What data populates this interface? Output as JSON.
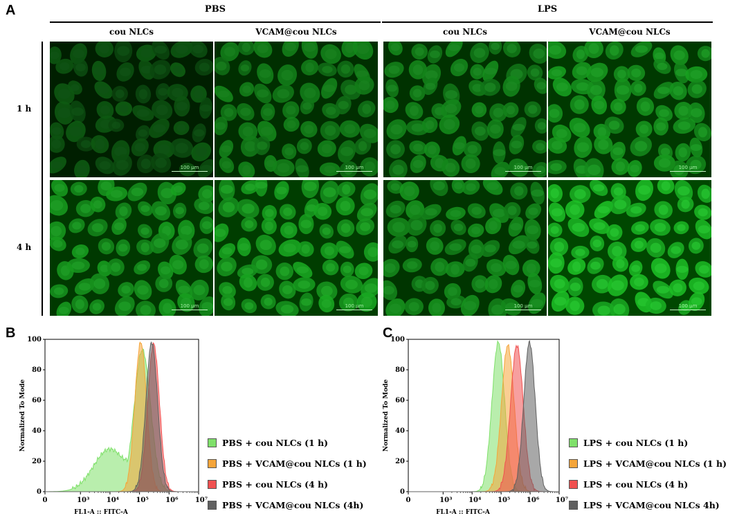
{
  "panel_a": {
    "letter": "A",
    "groups": [
      {
        "title": "PBS",
        "columns": [
          "cou NLCs",
          "VCAM@cou NLCs"
        ]
      },
      {
        "title": "LPS",
        "columns": [
          "cou NLCs",
          "VCAM@cou NLCs"
        ]
      }
    ],
    "rows": [
      "1 h",
      "4 h"
    ],
    "scale_bar": "100 μm",
    "brightness": [
      [
        0.18,
        0.45,
        0.5,
        0.62
      ],
      [
        0.62,
        0.68,
        0.55,
        0.85
      ]
    ]
  },
  "panel_b": {
    "letter": "B"
  },
  "panel_c": {
    "letter": "C"
  },
  "chart_data": [
    {
      "type": "area",
      "title": "",
      "xlabel": "FL1-A :: FITC-A",
      "ylabel": "Normalized To Mode",
      "x_scale": "log",
      "ylim": [
        0,
        100
      ],
      "x_ticks": [
        "0",
        "10³",
        "10⁴",
        "10⁵",
        "10⁶",
        "10⁷"
      ],
      "y_ticks": [
        "0",
        "20",
        "40",
        "60",
        "80",
        "100"
      ],
      "legend_position": "right",
      "series": [
        {
          "name": "PBS + cou NLCs (1 h)",
          "color": "#7fe06a",
          "peak": 125000,
          "peak_height": 93,
          "spread": 0.28,
          "shoulder": true
        },
        {
          "name": "PBS + VCAM@cou NLCs (1 h)",
          "color": "#f5a53a",
          "peak": 110000,
          "peak_height": 98,
          "spread": 0.2
        },
        {
          "name": "PBS + cou NLCs (4 h)",
          "color": "#f05050",
          "peak": 300000,
          "peak_height": 97,
          "spread": 0.2
        },
        {
          "name": "PBS + VCAM@cou NLCs (4h)",
          "color": "#606060",
          "peak": 260000,
          "peak_height": 98,
          "spread": 0.2
        }
      ]
    },
    {
      "type": "area",
      "title": "",
      "xlabel": "FL1-A :: FITC-A",
      "ylabel": "Normalized To Mode",
      "x_scale": "log",
      "ylim": [
        0,
        100
      ],
      "x_ticks": [
        "0",
        "10³",
        "10⁴",
        "10⁵",
        "10⁶",
        "10⁷"
      ],
      "y_ticks": [
        "0",
        "20",
        "40",
        "60",
        "80",
        "100"
      ],
      "legend_position": "right",
      "series": [
        {
          "name": "LPS + cou NLCs (1 h)",
          "color": "#7fe06a",
          "peak": 80000,
          "peak_height": 98,
          "spread": 0.22
        },
        {
          "name": "LPS + VCAM@cou NLCs (1 h)",
          "color": "#f5a53a",
          "peak": 170000,
          "peak_height": 96,
          "spread": 0.22
        },
        {
          "name": "LPS + cou NLCs (4 h)",
          "color": "#f05050",
          "peak": 350000,
          "peak_height": 96,
          "spread": 0.22
        },
        {
          "name": "LPS + VCAM@cou NLCs 4h)",
          "color": "#606060",
          "peak": 950000,
          "peak_height": 98,
          "spread": 0.2
        }
      ]
    }
  ]
}
